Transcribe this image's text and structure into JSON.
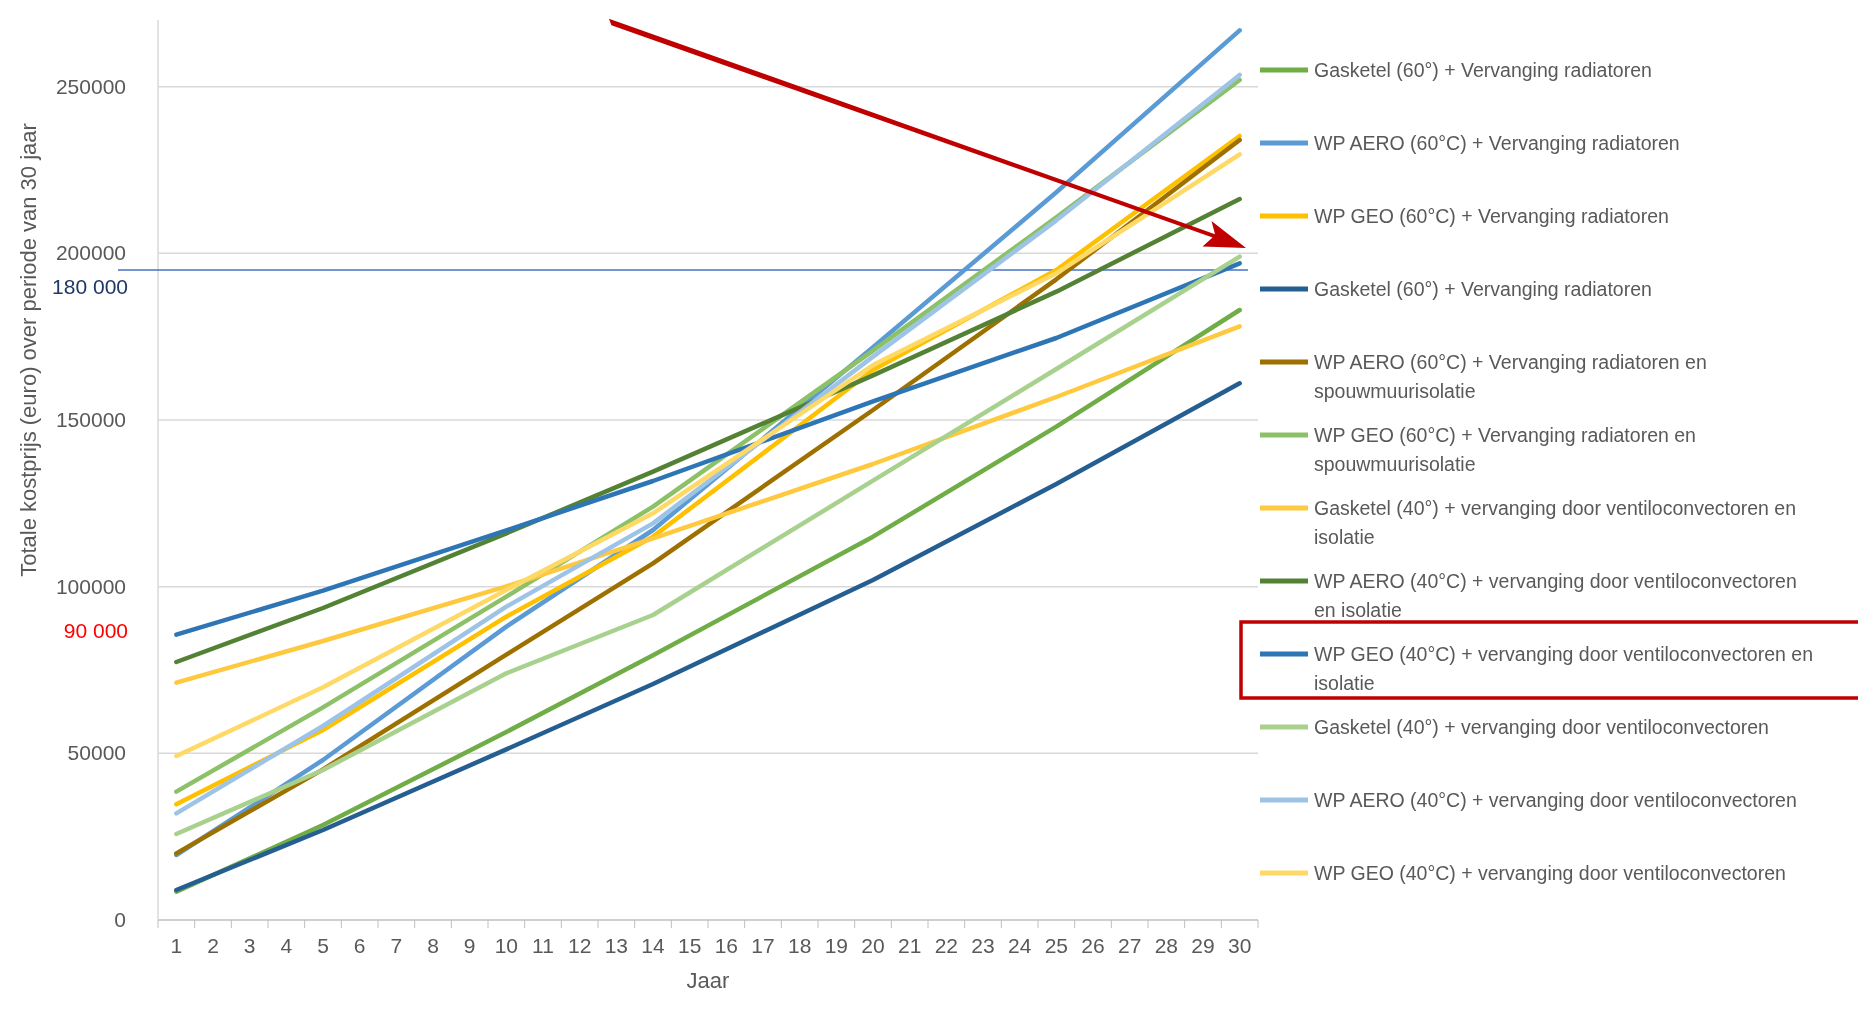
{
  "chart_data": {
    "type": "line",
    "xlabel": "Jaar",
    "ylabel": "Totale kostprijs (euro) over periode van 30 jaar",
    "xlim": [
      0.5,
      30.5
    ],
    "xticks": [
      1,
      2,
      3,
      4,
      5,
      6,
      7,
      8,
      9,
      10,
      11,
      12,
      13,
      14,
      15,
      16,
      17,
      18,
      19,
      20,
      21,
      22,
      23,
      24,
      25,
      26,
      27,
      28,
      29,
      30
    ],
    "ylim": [
      0,
      270000
    ],
    "yticks": [
      0,
      50000,
      100000,
      150000,
      200000,
      250000
    ],
    "grid": "y",
    "legend": "right",
    "ref_lines": [
      {
        "axis": "y",
        "value": 195000,
        "color": "#4472c4"
      }
    ],
    "annotations": [
      "180 000",
      "90 000"
    ],
    "series": [
      {
        "name": "Gasketel (60°) + Vervanging radiatoren",
        "color": "#70ad47",
        "x": [
          1,
          5,
          10,
          14,
          20,
          25,
          30
        ],
        "values": [
          8500,
          28500,
          56400,
          79400,
          115000,
          148000,
          183000
        ]
      },
      {
        "name": "WP AERO (60°C) +  Vervanging radiatoren",
        "color": "#5b9bd5",
        "x": [
          1,
          5,
          10,
          14,
          20,
          25,
          30
        ],
        "values": [
          19500,
          48000,
          88000,
          117000,
          171800,
          218300,
          266900
        ]
      },
      {
        "name": "WP GEO (60°C) + Vervanging radiatoren",
        "color": "#ffc000",
        "x": [
          1,
          5,
          10,
          14,
          20,
          25,
          30
        ],
        "values": [
          34700,
          57000,
          91000,
          115000,
          165000,
          195000,
          235200
        ]
      },
      {
        "name": "Gasketel (60°) + Vervanging radiatoren",
        "color": "#255e91",
        "x": [
          1,
          5,
          10,
          14,
          20,
          25,
          30
        ],
        "values": [
          9000,
          27000,
          51200,
          70800,
          102000,
          130800,
          161000
        ]
      },
      {
        "name": "WP AERO (60°C) +  Vervanging radiatoren en spouwmuurisolatie",
        "color": "#9e7000",
        "x": [
          1,
          5,
          10,
          14,
          20,
          25,
          30
        ],
        "values": [
          20000,
          45200,
          79600,
          107000,
          153000,
          192200,
          234000
        ]
      },
      {
        "name": "WP GEO (60°C) + Vervanging radiatoren en spouwmuurisolatie",
        "color": "#8cc168",
        "x": [
          1,
          5,
          10,
          14,
          20,
          25,
          30
        ],
        "values": [
          38500,
          63800,
          97000,
          124000,
          170800,
          210800,
          252000
        ]
      },
      {
        "name": "Gasketel (40°) + vervanging door ventiloconvectoren en isolatie",
        "color": "#ffc93f",
        "x": [
          1,
          5,
          10,
          14,
          20,
          25,
          30
        ],
        "values": [
          71200,
          83700,
          100100,
          114500,
          136800,
          156900,
          178100
        ]
      },
      {
        "name": "WP AERO (40°C) +  vervanging door ventiloconvectoren en isolatie",
        "color": "#548235",
        "x": [
          1,
          5,
          10,
          14,
          20,
          25,
          30
        ],
        "values": [
          77400,
          93600,
          116000,
          134500,
          163400,
          188500,
          216300
        ]
      },
      {
        "name": "WP GEO (40°C) + vervanging door ventiloconvectoren en isolatie",
        "color": "#2e75b6",
        "x": [
          1,
          5,
          10,
          14,
          20,
          25,
          30
        ],
        "values": [
          85600,
          98800,
          116900,
          131700,
          155600,
          174600,
          197000
        ]
      },
      {
        "name": "Gasketel (40°) + vervanging door ventiloconvectoren",
        "color": "#a9d18e",
        "x": [
          1,
          5,
          10,
          14,
          20,
          25,
          30
        ],
        "values": [
          25800,
          45000,
          74000,
          91500,
          131800,
          165300,
          199000
        ]
      },
      {
        "name": "WP AERO (40°C) +  vervanging door ventiloconvectoren",
        "color": "#9dc3e6",
        "x": [
          1,
          5,
          10,
          14,
          20,
          25,
          30
        ],
        "values": [
          32000,
          58200,
          94000,
          119000,
          169000,
          209900,
          253500
        ]
      },
      {
        "name": "WP GEO (40°C) + vervanging door ventiloconvectoren",
        "color": "#ffd966",
        "x": [
          1,
          5,
          10,
          14,
          20,
          25,
          30
        ],
        "values": [
          49200,
          69800,
          99000,
          122000,
          166500,
          194000,
          229700
        ]
      }
    ]
  }
}
